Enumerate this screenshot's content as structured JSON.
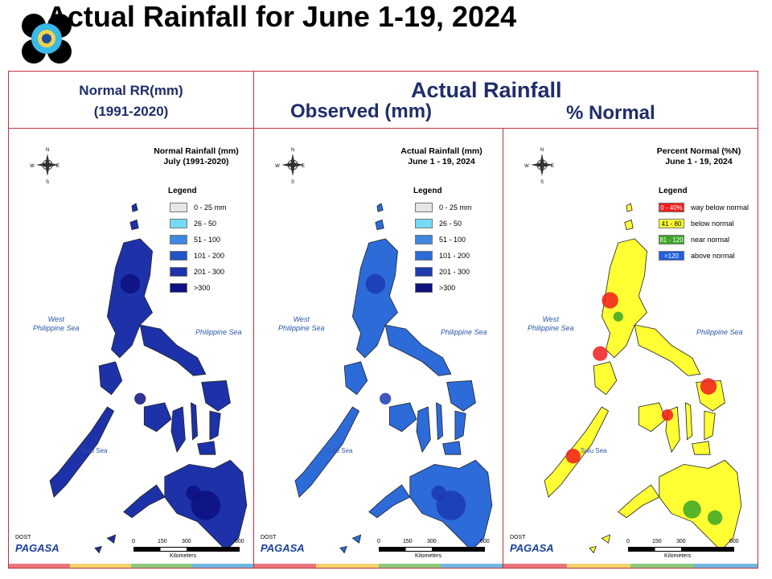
{
  "title": "Actual Rainfall for June 1-19, 2024",
  "header_left": {
    "line1": "Normal RR(mm)",
    "line2": "(1991-2020)"
  },
  "header_right": {
    "main": "Actual Rainfall",
    "observed": "Observed (mm)",
    "percent": "% Normal"
  },
  "panels": [
    {
      "id": "normal",
      "map_title_line1": "Normal Rainfall (mm)",
      "map_title_line2": "July (1991-2020)",
      "legend_title": "Legend",
      "legend": [
        {
          "label": "0 - 25 mm",
          "color": "#e6e6e6"
        },
        {
          "label": "26 - 50",
          "color": "#73dcf5"
        },
        {
          "label": "51 - 100",
          "color": "#3f86e0"
        },
        {
          "label": "101 - 200",
          "color": "#2353c9"
        },
        {
          "label": "201 - 300",
          "color": "#1d32a8"
        },
        {
          "label": ">300",
          "color": "#0d1180"
        }
      ],
      "fill": "#1d32a8",
      "dark": "#0d1180"
    },
    {
      "id": "actual",
      "map_title_line1": "Actual Rainfall (mm)",
      "map_title_line2": "June 1 - 19, 2024",
      "legend_title": "Legend",
      "legend": [
        {
          "label": "0 - 25 mm",
          "color": "#e6e6e6"
        },
        {
          "label": "26 - 50",
          "color": "#73dcf5"
        },
        {
          "label": "51 - 100",
          "color": "#3f86e0"
        },
        {
          "label": "101 - 200",
          "color": "#2d6bd9"
        },
        {
          "label": "201 - 300",
          "color": "#1d3ab0"
        },
        {
          "label": ">300",
          "color": "#0d1180"
        }
      ],
      "fill": "#2d6bd9",
      "dark": "#1d3ab0"
    },
    {
      "id": "percent",
      "map_title_line1": "Percent Normal (%N)",
      "map_title_line2": "June 1 - 19, 2024",
      "legend_title": "Legend",
      "legend": [
        {
          "label": "way below normal",
          "swatch": "0 - 40%",
          "color": "#f01c1c"
        },
        {
          "label": "below normal",
          "swatch": "41 - 80",
          "color": "#ffff33"
        },
        {
          "label": "near normal",
          "swatch": "81 - 120",
          "color": "#3aa626"
        },
        {
          "label": "above normal",
          "swatch": ">120",
          "color": "#1f5fe0"
        }
      ],
      "fill": "#ffff33",
      "dark": "#f01c1c"
    }
  ],
  "seas": {
    "west_line1": "West",
    "west_line2": "Philippine Sea",
    "east": "Philippine Sea",
    "south": "Sulu Sea"
  },
  "scale": {
    "t0": "0",
    "t1": "150",
    "t2": "300",
    "t3": "600",
    "unit": "Kilometers"
  },
  "agency": {
    "name": "PAGASA",
    "tag": "DOST"
  },
  "compass": {
    "n": "N",
    "s": "S",
    "e": "E",
    "w": "W"
  },
  "colors": {
    "frame": "#c0333a",
    "header_text": "#1f2d6b",
    "footer": [
      "#e8767a",
      "#f3d36b",
      "#8cc97e",
      "#6fb6e3"
    ]
  }
}
